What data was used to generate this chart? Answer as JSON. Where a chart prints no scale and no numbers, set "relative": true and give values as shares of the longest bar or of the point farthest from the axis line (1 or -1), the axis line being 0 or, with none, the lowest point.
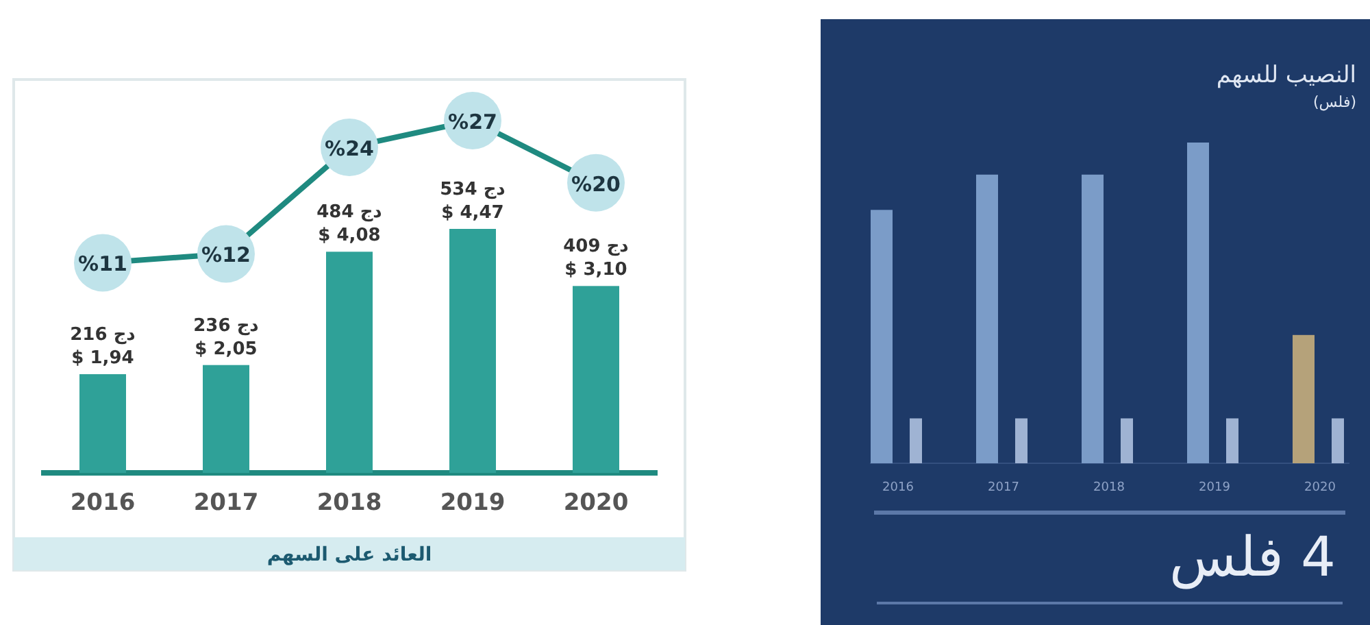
{
  "chart_data": [
    {
      "type": "bar",
      "title": "العائد على السهم",
      "categories": [
        "2016",
        "2017",
        "2018",
        "2019",
        "2020"
      ],
      "series": [
        {
          "type": "bar",
          "color": "#2fa198",
          "values": [
            216,
            236,
            484,
            534,
            409
          ],
          "value_labels": [
            "216 دج\n$ 1,94",
            "236 دج\n$ 2,05",
            "484 دج\n$ 4,08",
            "534 دج\n$ 4,47",
            "409 دج\n$ 3,10"
          ]
        },
        {
          "type": "line",
          "axis": "y2",
          "color": "#1f8a80",
          "values": [
            11,
            12,
            24,
            27,
            20
          ],
          "value_labels": [
            "%11",
            "%12",
            "%24",
            "%27",
            "%20"
          ]
        }
      ]
    },
    {
      "type": "bar",
      "relative": true,
      "title": "النصيب للسهم",
      "subtitle": "(فلس)",
      "categories": [
        "2016",
        "2017",
        "2018",
        "2019",
        "2020"
      ],
      "series": [
        {
          "type": "bar",
          "colors": [
            "#7b9cc8",
            "#7b9cc8",
            "#7b9cc8",
            "#7b9cc8",
            "#b5a27a"
          ],
          "values": [
            0.79,
            0.9,
            0.9,
            1,
            0.4
          ]
        },
        {
          "type": "bar",
          "color": "#9fb3d3",
          "values": [
            0.14,
            0.14,
            0.14,
            0.14,
            0.14
          ]
        }
      ],
      "annotations": [
        "4 فلس"
      ]
    }
  ]
}
